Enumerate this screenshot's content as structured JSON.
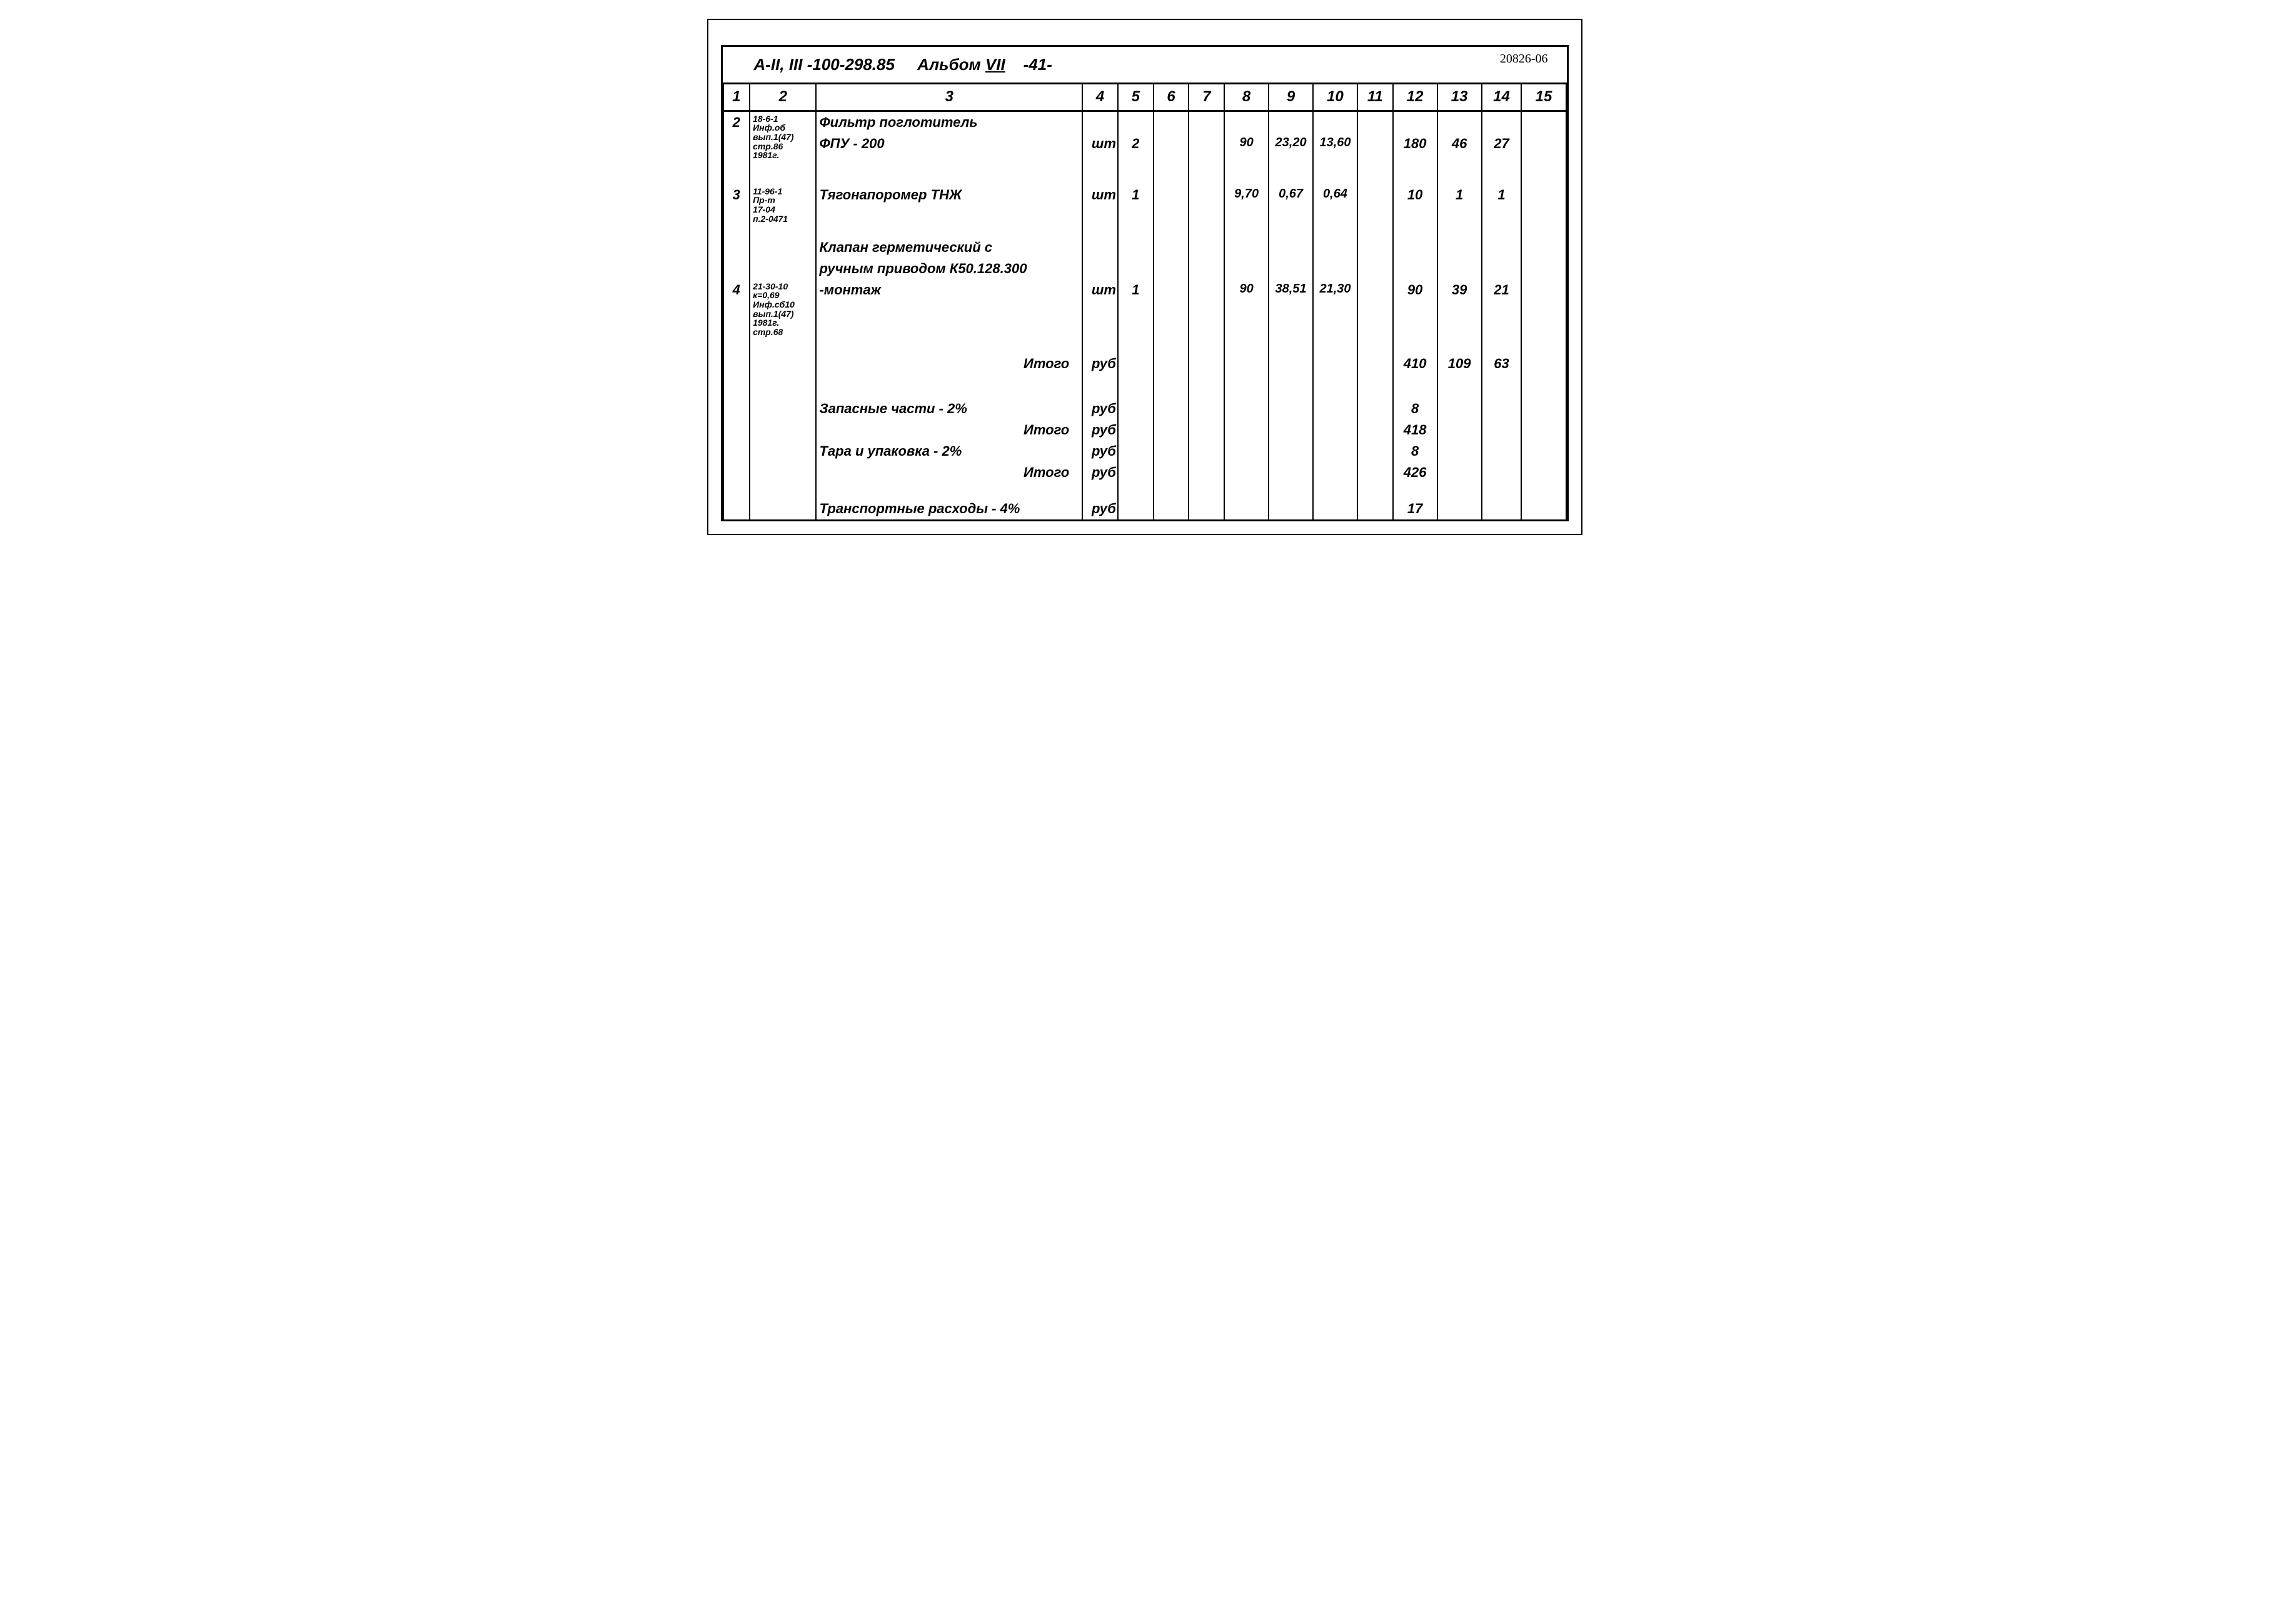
{
  "document": {
    "title_prefix": "А-II, III -100-298.85",
    "album_label": "Альбом",
    "album_number": "VII",
    "page": "-41-",
    "doc_number": "20826-06"
  },
  "columns": [
    "1",
    "2",
    "3",
    "4",
    "5",
    "6",
    "7",
    "8",
    "9",
    "10",
    "11",
    "12",
    "13",
    "14",
    "15"
  ],
  "table": {
    "column_widths_pct": [
      3,
      7.5,
      30,
      4,
      4,
      4,
      4,
      5,
      5,
      5,
      4,
      5,
      5,
      4.5,
      5
    ],
    "border_color": "#000000",
    "background_color": "#ffffff",
    "font_family": "Comic Sans MS, cursive",
    "header_fontsize": 24,
    "cell_fontsize": 22,
    "note_fontsize": 14
  },
  "rows": [
    {
      "c1": "2",
      "c2": "18-6-1\nИнф.об\nвып.1(47)\nстр.86\n1981г.",
      "c3a": "Фильтр поглотитель",
      "c3b": "ФПУ - 200",
      "c4": "шт",
      "c5": "2",
      "c8": "90",
      "c9": "23,20",
      "c10": "13,60",
      "c12": "180",
      "c13": "46",
      "c14": "27"
    },
    {
      "c1": "3",
      "c2": "11-96-1\nПр-т\n17-04\nп.2-0471",
      "c3": "Тягонапоромер ТНЖ",
      "c4": "шт",
      "c5": "1",
      "c8": "9,70",
      "c9": "0,67",
      "c10": "0,64",
      "c12": "10",
      "c13": "1",
      "c14": "1"
    },
    {
      "c1": "4",
      "c2": "21-30-10\nк=0,69\nИнф.сб10\nвып.1(47)\n1981г.\nстр.68",
      "c3a": "Клапан герметический с",
      "c3b": "ручным приводом К50.128.300",
      "c3c": "-монтаж",
      "c4": "шт",
      "c5": "1",
      "c8": "90",
      "c9": "38,51",
      "c10": "21,30",
      "c12": "90",
      "c13": "39",
      "c14": "21"
    }
  ],
  "summary": [
    {
      "label": "Итого",
      "unit": "руб",
      "c12": "410",
      "c13": "109",
      "c14": "63",
      "align": "right"
    },
    {
      "label": "Запасные части - 2%",
      "unit": "руб",
      "c12": "8",
      "align": "left"
    },
    {
      "label": "Итого",
      "unit": "руб",
      "c12": "418",
      "align": "right"
    },
    {
      "label": "Тара и упаковка - 2%",
      "unit": "руб",
      "c12": "8",
      "align": "left"
    },
    {
      "label": "Итого",
      "unit": "руб",
      "c12": "426",
      "align": "right"
    },
    {
      "label": "Транспортные расходы - 4%",
      "unit": "руб",
      "c12": "17",
      "align": "left"
    }
  ]
}
